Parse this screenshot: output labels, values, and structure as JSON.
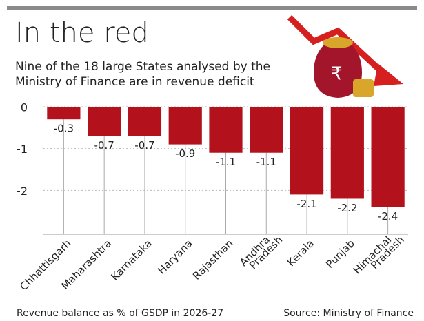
{
  "chart_data": {
    "type": "bar",
    "title": "In the red",
    "subtitle": "Nine of the 18 large States analysed by the Ministry of Finance are in revenue deficit",
    "categories": [
      "Chhattisgarh",
      "Maharashtra",
      "Karnataka",
      "Haryana",
      "Rajasthan",
      "Andhra Pradesh",
      "Kerala",
      "Punjab",
      "Himachal Pradesh"
    ],
    "values": [
      -0.3,
      -0.7,
      -0.7,
      -0.9,
      -1.1,
      -1.1,
      -2.1,
      -2.2,
      -2.4
    ],
    "color": "#b3121c",
    "ylim": [
      -3,
      0
    ],
    "yticks": [
      0,
      -1,
      -2
    ],
    "grid": true,
    "x_label": "Revenue balance as % of GSDP in 2026-27",
    "source": "Source: Ministry of Finance"
  }
}
